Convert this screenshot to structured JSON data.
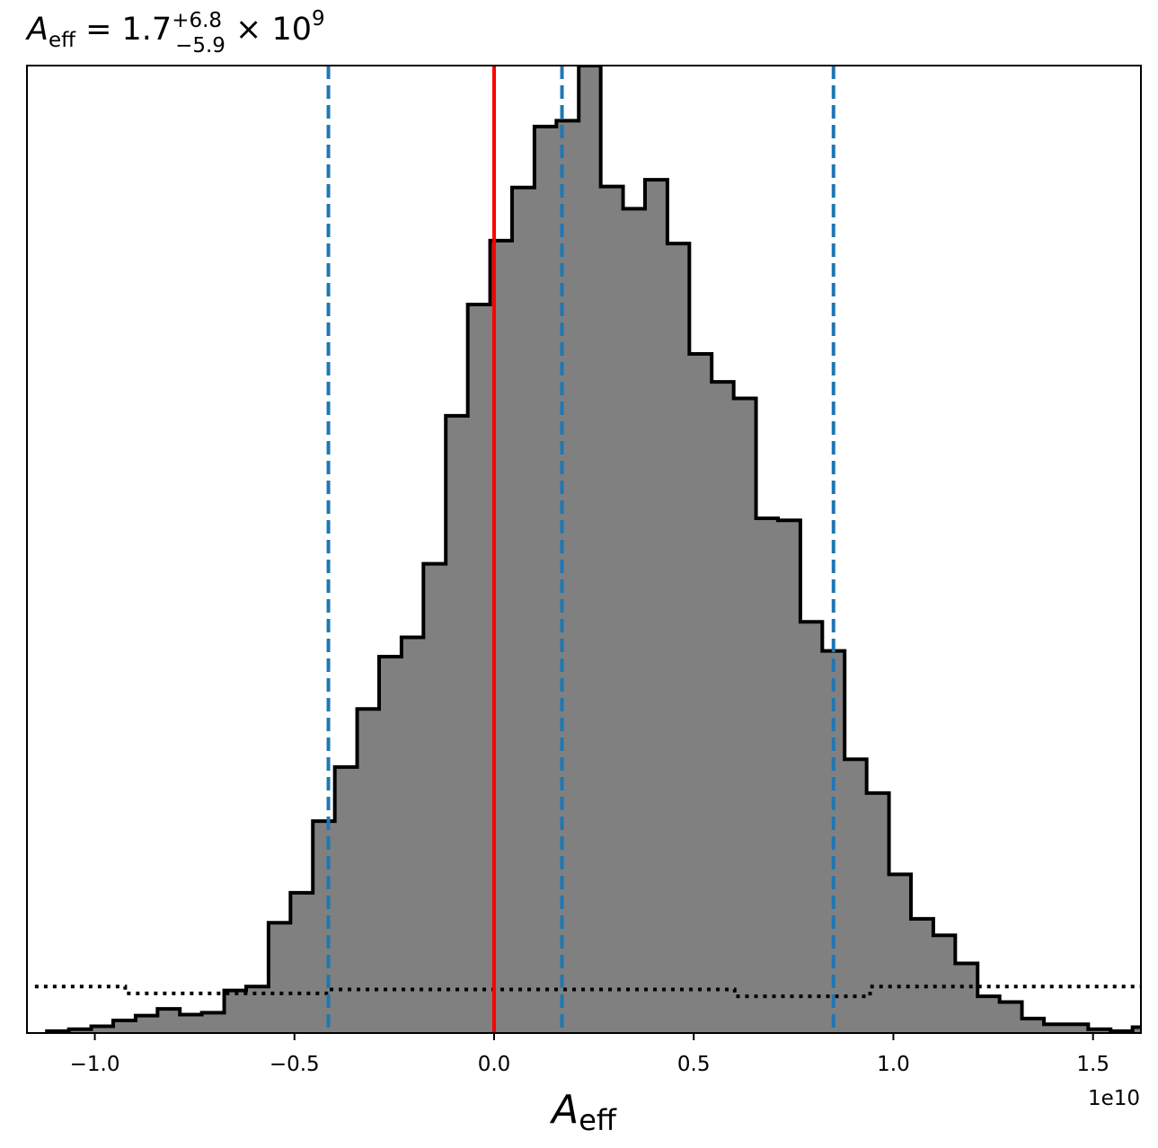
{
  "chart_data": {
    "type": "histogram",
    "title": {
      "symbol": "A",
      "symbol_sub": "eff",
      "eq": " = 1.7",
      "sup": "+6.8",
      "sub": "−5.9",
      "times": " × 10",
      "exp": "9"
    },
    "xlabel": {
      "symbol": "A",
      "sub": "eff"
    },
    "x_offset_label": "1e10",
    "xlim": [
      -1.17,
      1.62
    ],
    "ylim": [
      0,
      1.0
    ],
    "x_ticks": [
      {
        "value": -1.0,
        "label": "−1.0"
      },
      {
        "value": -0.5,
        "label": "−0.5"
      },
      {
        "value": 0.0,
        "label": "0.0"
      },
      {
        "value": 0.5,
        "label": "0.5"
      },
      {
        "value": 1.0,
        "label": "1.0"
      },
      {
        "value": 1.5,
        "label": "1.5"
      }
    ],
    "y_ticks_shown": false,
    "grid": false,
    "bin_edges": [
      -1.12,
      -1.065,
      -1.009,
      -0.954,
      -0.898,
      -0.843,
      -0.787,
      -0.732,
      -0.676,
      -0.621,
      -0.565,
      -0.51,
      -0.454,
      -0.399,
      -0.343,
      -0.288,
      -0.232,
      -0.177,
      -0.121,
      -0.066,
      -0.01,
      0.045,
      0.101,
      0.156,
      0.212,
      0.267,
      0.323,
      0.378,
      0.434,
      0.489,
      0.545,
      0.6,
      0.656,
      0.711,
      0.767,
      0.822,
      0.878,
      0.933,
      0.989,
      1.044,
      1.1,
      1.155,
      1.211,
      1.266,
      1.322,
      1.377,
      1.433,
      1.488,
      1.544,
      1.599,
      1.655
    ],
    "counts": [
      0.002,
      0.004,
      0.007,
      0.013,
      0.018,
      0.025,
      0.019,
      0.021,
      0.044,
      0.048,
      0.114,
      0.145,
      0.219,
      0.275,
      0.335,
      0.389,
      0.409,
      0.485,
      0.638,
      0.753,
      0.819,
      0.874,
      0.937,
      0.943,
      1.0,
      0.875,
      0.852,
      0.882,
      0.816,
      0.702,
      0.673,
      0.656,
      0.532,
      0.53,
      0.425,
      0.395,
      0.283,
      0.248,
      0.164,
      0.118,
      0.101,
      0.072,
      0.038,
      0.032,
      0.015,
      0.009,
      0.009,
      0.004,
      0.002,
      0.006
    ],
    "prior_counts": [
      0.048,
      0.048,
      0.048,
      0.048,
      0.041,
      0.041,
      0.041,
      0.041,
      0.041,
      0.041,
      0.041,
      0.041,
      0.041,
      0.045,
      0.045,
      0.045,
      0.045,
      0.045,
      0.045,
      0.045,
      0.045,
      0.045,
      0.045,
      0.045,
      0.045,
      0.045,
      0.045,
      0.045,
      0.045,
      0.045,
      0.045,
      0.038,
      0.038,
      0.038,
      0.038,
      0.038,
      0.038,
      0.048,
      0.048,
      0.048,
      0.048,
      0.048,
      0.048,
      0.048,
      0.048,
      0.048,
      0.048,
      0.048,
      0.048
    ],
    "prior_start": -1.15,
    "prior_end": 1.62,
    "vlines": [
      {
        "name": "truth",
        "x": 0.0,
        "color": "#ff0000",
        "style": "solid"
      },
      {
        "name": "lower-quantile",
        "x": -0.415,
        "color": "#1f77b4",
        "style": "dashed"
      },
      {
        "name": "median",
        "x": 0.17,
        "color": "#1f77b4",
        "style": "dashed"
      },
      {
        "name": "upper-quantile",
        "x": 0.85,
        "color": "#1f77b4",
        "style": "dashed"
      }
    ],
    "colors": {
      "fill": "#808080",
      "edge": "#000000",
      "prior": "#000000"
    }
  }
}
